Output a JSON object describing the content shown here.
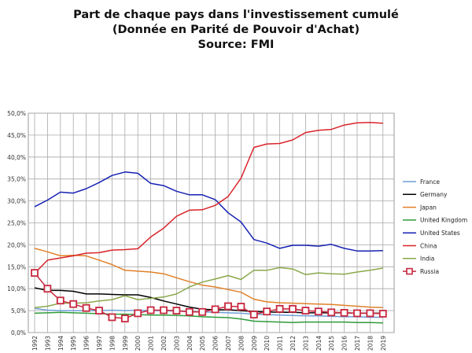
{
  "chart_data": {
    "type": "line",
    "title_lines": [
      "Part de chaque pays dans l'investissement cumulé",
      "(Donnée en Parité de Pouvoir d'Achat)",
      "Source: FMI"
    ],
    "xlabel": "",
    "ylabel": "",
    "ylim": [
      0,
      50
    ],
    "y_ticks": [
      "0,0%",
      "5,0%",
      "10,0%",
      "15,0%",
      "20,0%",
      "25,0%",
      "30,0%",
      "35,0%",
      "40,0%",
      "45,0%",
      "50,0%"
    ],
    "grid": true,
    "legend_position": "right",
    "categories": [
      "1992",
      "1993",
      "1994",
      "1995",
      "1996",
      "1997",
      "1998",
      "1999",
      "2000",
      "2001",
      "2002",
      "2003",
      "2004",
      "2005",
      "2006",
      "2007",
      "2008",
      "2009",
      "2010",
      "2011",
      "2012",
      "2013",
      "2014",
      "2015",
      "2016",
      "2017",
      "2018",
      "2019"
    ],
    "series": [
      {
        "name": "France",
        "color": "#6e9fd6",
        "values": [
          5.5,
          5.1,
          5.0,
          5.0,
          5.0,
          5.0,
          5.1,
          5.0,
          5.1,
          5.0,
          5.0,
          4.9,
          4.8,
          4.7,
          4.6,
          4.5,
          4.4,
          4.2,
          4.1,
          4.0,
          3.9,
          3.8,
          3.8,
          3.7,
          3.6,
          3.6,
          3.5,
          3.5
        ]
      },
      {
        "name": "Germany",
        "color": "#000000",
        "values": [
          10.2,
          9.6,
          9.6,
          9.4,
          8.8,
          8.8,
          8.7,
          8.6,
          8.6,
          8.0,
          7.2,
          6.5,
          5.8,
          5.3,
          5.2,
          5.2,
          5.0,
          4.8,
          4.7,
          4.6,
          4.6,
          4.5,
          4.5,
          4.5,
          4.5,
          4.4,
          4.4,
          4.4
        ]
      },
      {
        "name": "Japan",
        "color": "#e0812a",
        "values": [
          19.2,
          18.4,
          17.5,
          17.6,
          17.5,
          16.5,
          15.5,
          14.2,
          14.0,
          13.8,
          13.4,
          12.5,
          11.6,
          10.8,
          10.4,
          9.8,
          9.2,
          7.6,
          7.0,
          6.8,
          6.7,
          6.6,
          6.5,
          6.4,
          6.2,
          6.0,
          5.8,
          5.7
        ]
      },
      {
        "name": "United Kingdom",
        "color": "#2e9b3a",
        "values": [
          4.4,
          4.5,
          4.6,
          4.5,
          4.4,
          4.3,
          4.2,
          4.2,
          4.1,
          4.0,
          4.0,
          3.9,
          3.8,
          3.6,
          3.5,
          3.4,
          3.1,
          2.6,
          2.5,
          2.4,
          2.3,
          2.4,
          2.4,
          2.4,
          2.4,
          2.3,
          2.3,
          2.2
        ]
      },
      {
        "name": "United States",
        "color": "#1622b4",
        "values": [
          28.7,
          30.2,
          32.0,
          31.8,
          32.8,
          34.2,
          35.8,
          36.6,
          36.3,
          34.0,
          33.5,
          32.2,
          31.4,
          31.4,
          30.3,
          27.3,
          25.2,
          21.2,
          20.4,
          19.2,
          19.9,
          19.9,
          19.7,
          20.1,
          19.2,
          18.6,
          18.6,
          18.7
        ]
      },
      {
        "name": "China",
        "color": "#d9252a",
        "values": [
          13.5,
          16.5,
          17.0,
          17.5,
          18.1,
          18.2,
          18.8,
          18.9,
          19.1,
          21.8,
          23.8,
          26.5,
          27.9,
          28.0,
          29.0,
          31.0,
          35.2,
          42.2,
          43.0,
          43.1,
          43.9,
          45.6,
          46.1,
          46.3,
          47.3,
          47.8,
          47.9,
          47.7
        ]
      },
      {
        "name": "India",
        "color": "#8aa84a",
        "values": [
          5.7,
          6.0,
          6.7,
          6.7,
          6.8,
          7.2,
          7.5,
          8.4,
          7.5,
          7.8,
          8.1,
          8.8,
          10.4,
          11.5,
          12.2,
          13.0,
          12.1,
          14.2,
          14.2,
          14.8,
          14.5,
          13.2,
          13.6,
          13.4,
          13.3,
          13.8,
          14.2,
          14.7
        ]
      },
      {
        "name": "Russia",
        "color": "#c8283f",
        "values": [
          13.6,
          10.0,
          7.3,
          6.5,
          5.6,
          5.0,
          3.5,
          3.2,
          4.4,
          5.1,
          5.1,
          5.0,
          4.7,
          4.7,
          5.3,
          6.0,
          5.9,
          4.1,
          4.8,
          5.4,
          5.4,
          5.0,
          4.8,
          4.6,
          4.5,
          4.4,
          4.4,
          4.3
        ]
      }
    ]
  }
}
